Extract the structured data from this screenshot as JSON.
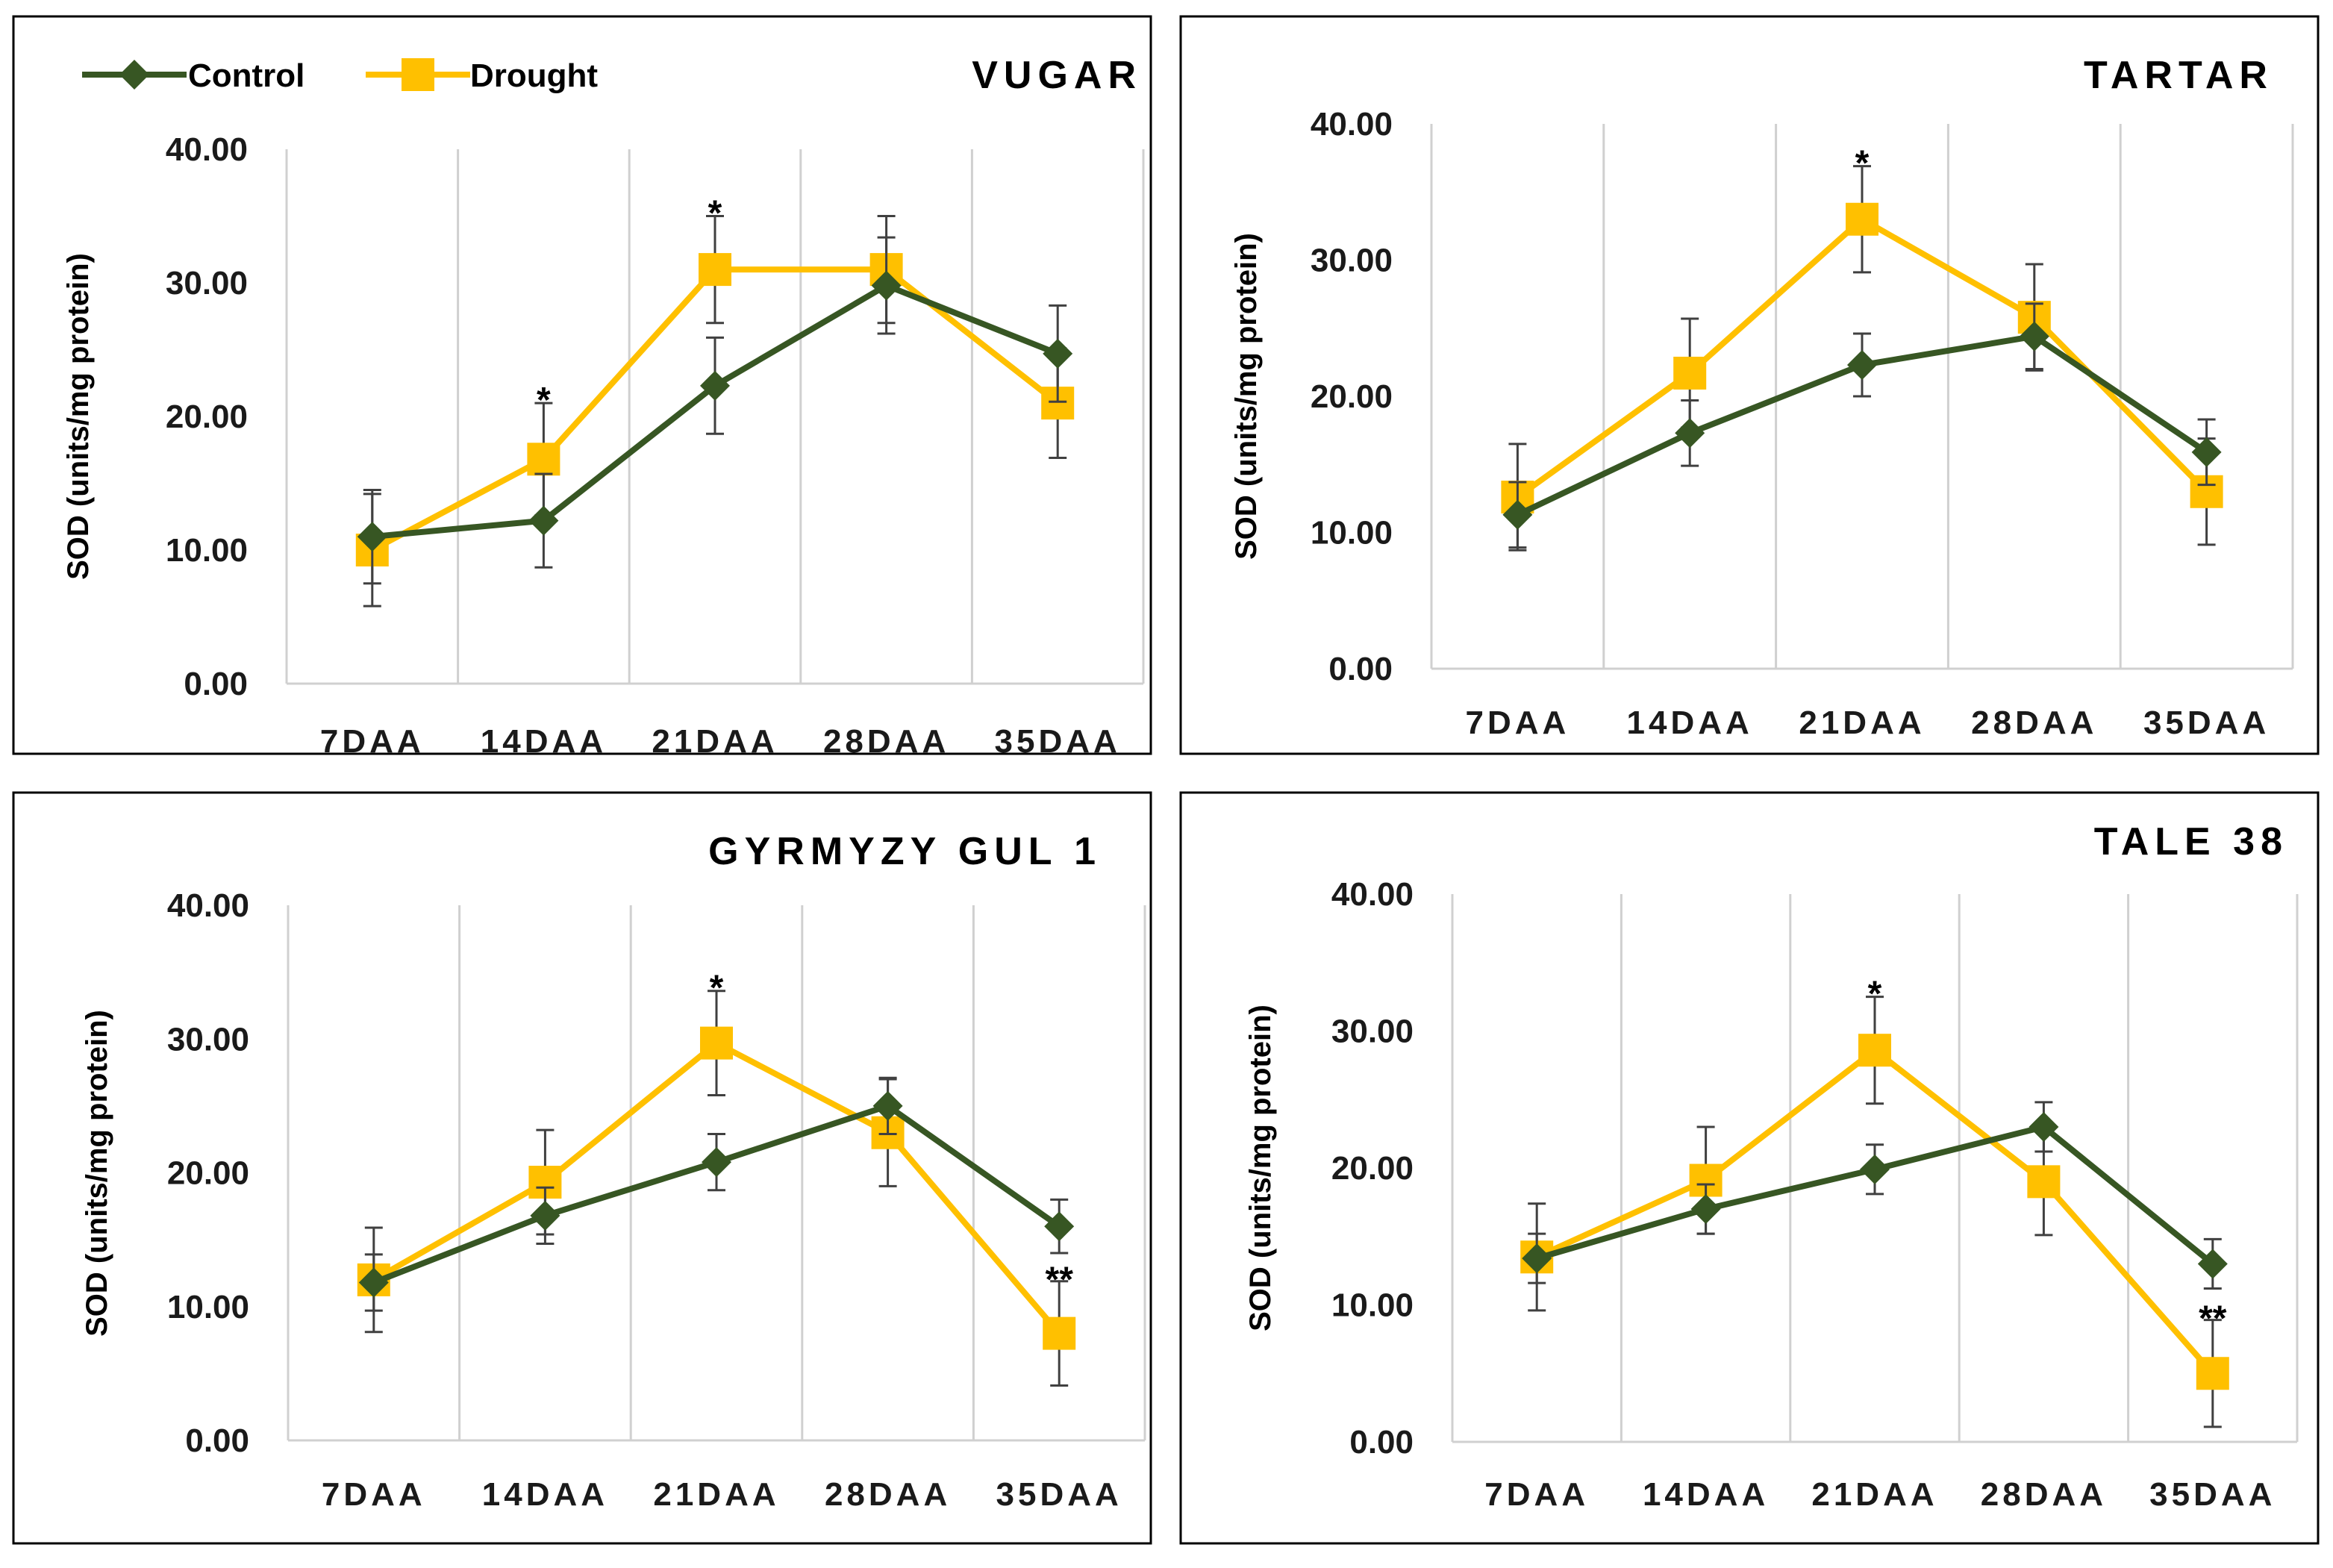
{
  "colors": {
    "control": "#375623",
    "drought": "#FFC000"
  },
  "legend": {
    "control_label": "Control",
    "drought_label": "Drought"
  },
  "chart_data": [
    {
      "type": "line",
      "title": "VUGAR",
      "categories": [
        "7DAA",
        "14DAA",
        "21DAA",
        "28DAA",
        "35DAA"
      ],
      "ylabel": "SOD (units/mg protein)",
      "ylim": [
        0,
        40
      ],
      "yticks": [
        "0.00",
        "10.00",
        "20.00",
        "30.00",
        "40.00"
      ],
      "series": [
        {
          "name": "Control",
          "values": [
            11.0,
            12.2,
            22.3,
            29.8,
            24.7
          ],
          "errors": [
            3.5,
            3.5,
            3.6,
            3.6,
            3.6
          ]
        },
        {
          "name": "Drought",
          "values": [
            10.0,
            16.8,
            31.0,
            31.0,
            21.0
          ],
          "errors": [
            4.2,
            4.2,
            4.0,
            4.0,
            4.1
          ]
        }
      ],
      "annotations": [
        "",
        "*",
        "*",
        "",
        ""
      ]
    },
    {
      "type": "line",
      "title": "TARTAR",
      "categories": [
        "7DAA",
        "14DAA",
        "21DAA",
        "28DAA",
        "35DAA"
      ],
      "ylabel": "SOD (units/mg protein)",
      "ylim": [
        0,
        40
      ],
      "yticks": [
        "0.00",
        "10.00",
        "20.00",
        "30.00",
        "40.00"
      ],
      "series": [
        {
          "name": "Control",
          "values": [
            11.3,
            17.3,
            22.3,
            24.4,
            15.9
          ],
          "errors": [
            2.4,
            2.4,
            2.3,
            2.4,
            2.4
          ]
        },
        {
          "name": "Drought",
          "values": [
            12.6,
            21.7,
            33.0,
            25.8,
            13.0
          ],
          "errors": [
            3.9,
            4.0,
            3.9,
            3.9,
            3.9
          ]
        }
      ],
      "annotations": [
        "",
        "",
        "*",
        "",
        ""
      ]
    },
    {
      "type": "line",
      "title": "GYRMYZY GUL 1",
      "categories": [
        "7DAA",
        "14DAA",
        "21DAA",
        "28DAA",
        "35DAA"
      ],
      "ylabel": "SOD (units/mg protein)",
      "ylim": [
        0,
        40
      ],
      "yticks": [
        "0.00",
        "10.00",
        "20.00",
        "30.00",
        "40.00"
      ],
      "series": [
        {
          "name": "Control",
          "values": [
            11.8,
            16.8,
            20.8,
            25.0,
            16.0
          ],
          "errors": [
            2.1,
            2.1,
            2.1,
            2.1,
            2.0
          ]
        },
        {
          "name": "Drought",
          "values": [
            12.0,
            19.3,
            29.7,
            23.0,
            8.0
          ],
          "errors": [
            3.9,
            3.9,
            3.9,
            4.0,
            3.9
          ]
        }
      ],
      "annotations": [
        "",
        "",
        "*",
        "",
        "**"
      ]
    },
    {
      "type": "line",
      "title": "TALE 38",
      "categories": [
        "7DAA",
        "14DAA",
        "21DAA",
        "28DAA",
        "35DAA"
      ],
      "ylabel": "SOD (units/mg protein)",
      "ylim": [
        0,
        40
      ],
      "yticks": [
        "0.00",
        "10.00",
        "20.00",
        "30.00",
        "40.00"
      ],
      "series": [
        {
          "name": "Control",
          "values": [
            13.4,
            17.0,
            19.9,
            23.0,
            13.0
          ],
          "errors": [
            1.8,
            1.8,
            1.8,
            1.8,
            1.8
          ]
        },
        {
          "name": "Drought",
          "values": [
            13.5,
            19.1,
            28.6,
            19.0,
            5.0
          ],
          "errors": [
            3.9,
            3.9,
            3.9,
            3.9,
            3.9
          ]
        }
      ],
      "annotations": [
        "",
        "",
        "*",
        "",
        "**"
      ]
    }
  ]
}
